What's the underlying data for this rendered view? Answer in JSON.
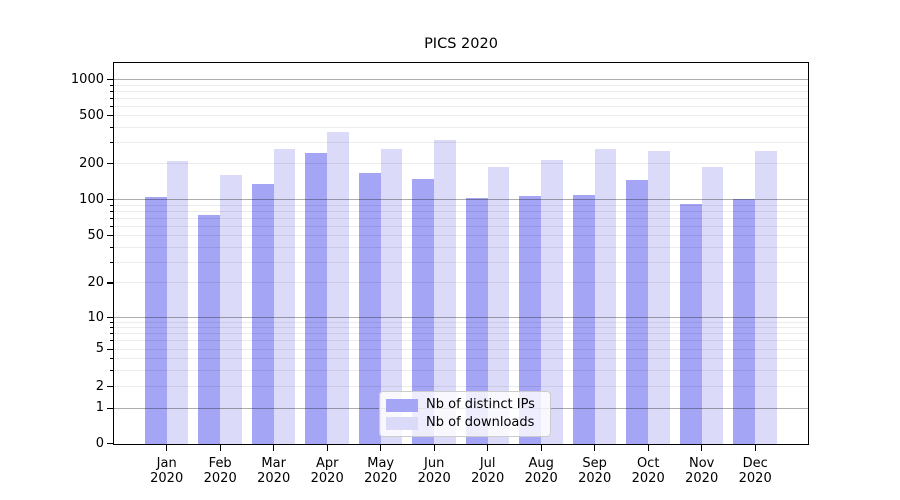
{
  "chart_data": {
    "type": "bar",
    "title": "PICS 2020",
    "xlabel": "",
    "ylabel": "",
    "y_scale": "symlog",
    "grid": true,
    "legend_position": "lower center",
    "y_ticks": [
      0,
      1,
      2,
      5,
      10,
      20,
      50,
      100,
      200,
      500,
      1000
    ],
    "y_tick_labels": [
      "0",
      "1",
      "2",
      "5",
      "10",
      "20",
      "50",
      "100",
      "200",
      "500",
      "1000"
    ],
    "ylim": [
      0,
      1400
    ],
    "categories": [
      "Jan 2020",
      "Feb 2020",
      "Mar 2020",
      "Apr 2020",
      "May 2020",
      "Jun 2020",
      "Jul 2020",
      "Aug 2020",
      "Sep 2020",
      "Oct 2020",
      "Nov 2020",
      "Dec 2020"
    ],
    "months": [
      "Jan",
      "Feb",
      "Mar",
      "Apr",
      "May",
      "Jun",
      "Jul",
      "Aug",
      "Sep",
      "Oct",
      "Nov",
      "Dec"
    ],
    "year_label": "2020",
    "series": [
      {
        "name": "Nb of distinct IPs",
        "color": "#a5a5f5",
        "values": [
          105,
          74,
          135,
          245,
          168,
          150,
          104,
          108,
          110,
          147,
          92,
          102
        ]
      },
      {
        "name": "Nb of downloads",
        "color": "#dbdbf9",
        "values": [
          210,
          160,
          265,
          370,
          265,
          315,
          186,
          216,
          265,
          255,
          188,
          255
        ]
      }
    ],
    "colors": {
      "spine": "#000000",
      "grid_major": "#b0b0b0",
      "grid_minor": "#ebebeb",
      "background": "#ffffff"
    }
  }
}
